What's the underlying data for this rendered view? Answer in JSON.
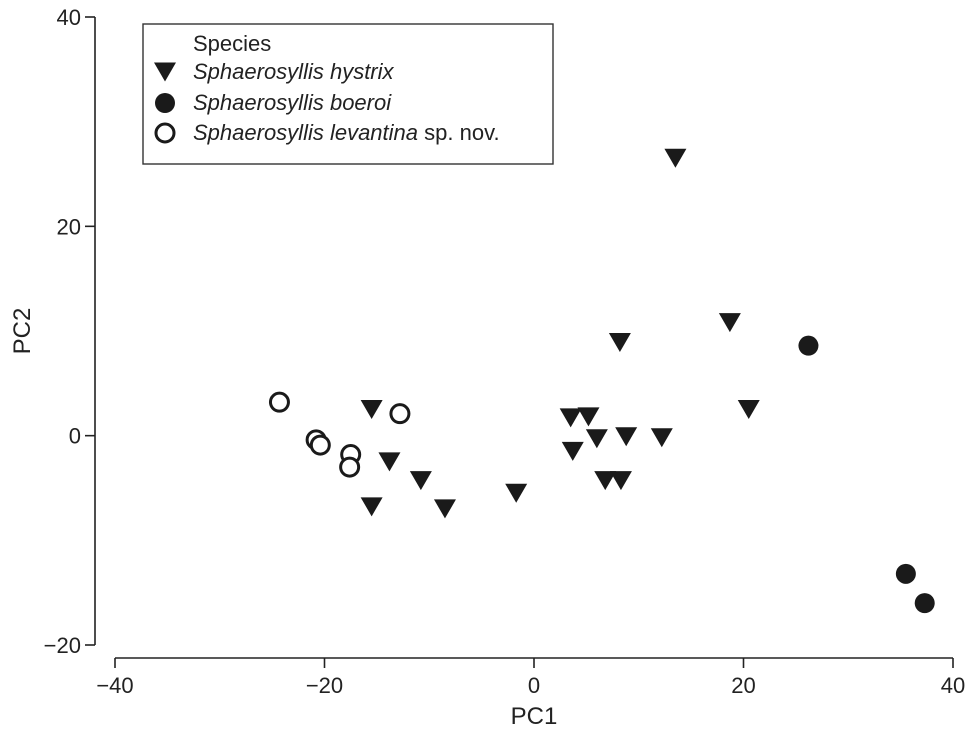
{
  "chart_data": {
    "type": "scatter",
    "xlabel": "PC1",
    "ylabel": "PC2",
    "xlim": [
      -40,
      40
    ],
    "ylim": [
      -20,
      40
    ],
    "xticks": [
      -40,
      -20,
      0,
      20,
      40
    ],
    "yticks": [
      -20,
      0,
      20,
      40
    ],
    "grid": false,
    "legend": {
      "title": "Species",
      "placement": "top-left"
    },
    "series": [
      {
        "name_italic": "Sphaerosyllis hystrix",
        "name_suffix": "",
        "marker": "triangle-down",
        "fill": "#1a1a1a",
        "points": [
          [
            13.5,
            26.5
          ],
          [
            18.7,
            10.8
          ],
          [
            8.2,
            8.9
          ],
          [
            20.5,
            2.5
          ],
          [
            3.5,
            1.7
          ],
          [
            5.2,
            1.8
          ],
          [
            6.0,
            -0.3
          ],
          [
            8.8,
            -0.1
          ],
          [
            12.2,
            -0.2
          ],
          [
            3.7,
            -1.5
          ],
          [
            6.8,
            -4.3
          ],
          [
            8.3,
            -4.3
          ],
          [
            -1.7,
            -5.5
          ],
          [
            -15.5,
            2.5
          ],
          [
            -13.8,
            -2.5
          ],
          [
            -10.8,
            -4.3
          ],
          [
            -15.5,
            -6.8
          ],
          [
            -8.5,
            -7.0
          ]
        ]
      },
      {
        "name_italic": "Sphaerosyllis boeroi",
        "name_suffix": "",
        "marker": "circle-filled",
        "fill": "#1a1a1a",
        "points": [
          [
            26.2,
            8.6
          ],
          [
            35.5,
            -13.2
          ],
          [
            37.3,
            -16.0
          ]
        ]
      },
      {
        "name_italic": "Sphaerosyllis levantina",
        "name_suffix": " sp. nov.",
        "marker": "circle-open",
        "fill": "none",
        "points": [
          [
            -24.3,
            3.2
          ],
          [
            -12.8,
            2.1
          ],
          [
            -20.8,
            -0.4
          ],
          [
            -20.4,
            -0.9
          ],
          [
            -17.5,
            -1.8
          ],
          [
            -17.6,
            -3.0
          ]
        ]
      }
    ]
  }
}
